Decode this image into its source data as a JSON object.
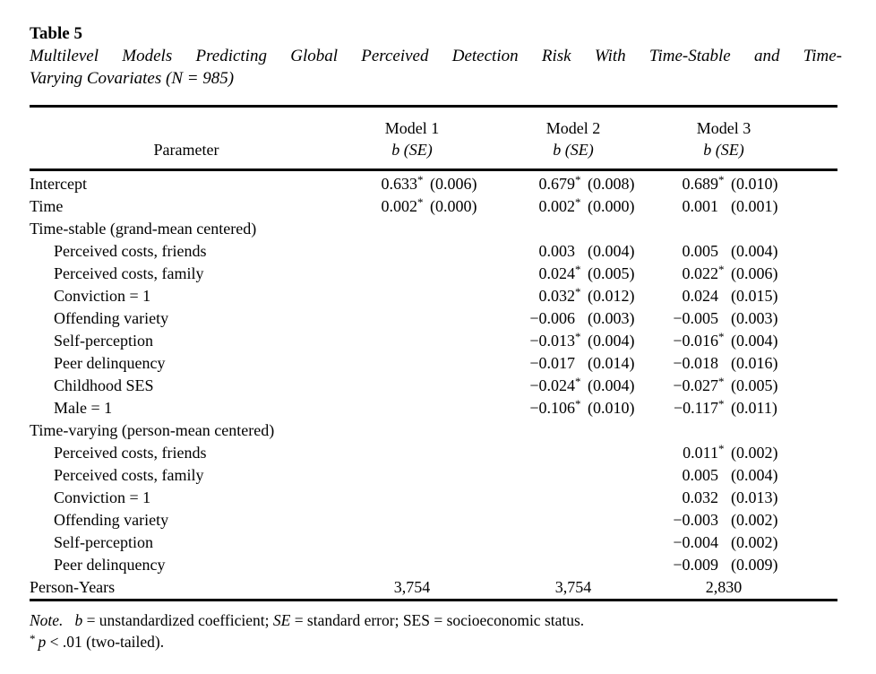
{
  "colors": {
    "text": "#000000",
    "background": "#ffffff"
  },
  "title": "Table 5",
  "subtitle_line1": "Multilevel Models Predicting Global Perceived Detection Risk With Time-Stable and Time-",
  "subtitle_line2": "Varying Covariates (N = 985)",
  "header": {
    "param": "Parameter",
    "models": [
      {
        "name": "Model 1",
        "stat": "b (SE)"
      },
      {
        "name": "Model 2",
        "stat": "b (SE)"
      },
      {
        "name": "Model 3",
        "stat": "b (SE)"
      }
    ]
  },
  "rows": [
    {
      "label": "Intercept",
      "indent": false,
      "m1": {
        "b": "0.633",
        "star": "*",
        "se": "(0.006)"
      },
      "m2": {
        "b": "0.679",
        "star": "*",
        "se": "(0.008)"
      },
      "m3": {
        "b": "0.689",
        "star": "*",
        "se": "(0.010)"
      }
    },
    {
      "label": "Time",
      "indent": false,
      "m1": {
        "b": "0.002",
        "star": "*",
        "se": "(0.000)"
      },
      "m2": {
        "b": "0.002",
        "star": "*",
        "se": "(0.000)"
      },
      "m3": {
        "b": "0.001",
        "star": "",
        "se": "(0.001)"
      }
    },
    {
      "label": "Time-stable (grand-mean centered)",
      "indent": false,
      "section": true
    },
    {
      "label": "Perceived costs, friends",
      "indent": true,
      "m2": {
        "b": "0.003",
        "star": "",
        "se": "(0.004)"
      },
      "m3": {
        "b": "0.005",
        "star": "",
        "se": "(0.004)"
      }
    },
    {
      "label": "Perceived costs, family",
      "indent": true,
      "m2": {
        "b": "0.024",
        "star": "*",
        "se": "(0.005)"
      },
      "m3": {
        "b": "0.022",
        "star": "*",
        "se": "(0.006)"
      }
    },
    {
      "label": "Conviction = 1",
      "indent": true,
      "m2": {
        "b": "0.032",
        "star": "*",
        "se": "(0.012)"
      },
      "m3": {
        "b": "0.024",
        "star": "",
        "se": "(0.015)"
      }
    },
    {
      "label": "Offending variety",
      "indent": true,
      "m2": {
        "b": "−0.006",
        "star": "",
        "se": "(0.003)"
      },
      "m3": {
        "b": "−0.005",
        "star": "",
        "se": "(0.003)"
      }
    },
    {
      "label": "Self-perception",
      "indent": true,
      "m2": {
        "b": "−0.013",
        "star": "*",
        "se": "(0.004)"
      },
      "m3": {
        "b": "−0.016",
        "star": "*",
        "se": "(0.004)"
      }
    },
    {
      "label": "Peer delinquency",
      "indent": true,
      "m2": {
        "b": "−0.017",
        "star": "",
        "se": "(0.014)"
      },
      "m3": {
        "b": "−0.018",
        "star": "",
        "se": "(0.016)"
      }
    },
    {
      "label": "Childhood SES",
      "indent": true,
      "m2": {
        "b": "−0.024",
        "star": "*",
        "se": "(0.004)"
      },
      "m3": {
        "b": "−0.027",
        "star": "*",
        "se": "(0.005)"
      }
    },
    {
      "label": "Male = 1",
      "indent": true,
      "m2": {
        "b": "−0.106",
        "star": "*",
        "se": "(0.010)"
      },
      "m3": {
        "b": "−0.117",
        "star": "*",
        "se": "(0.011)"
      }
    },
    {
      "label": "Time-varying (person-mean centered)",
      "indent": false,
      "section": true
    },
    {
      "label": "Perceived costs, friends",
      "indent": true,
      "m3": {
        "b": "0.011",
        "star": "*",
        "se": "(0.002)"
      }
    },
    {
      "label": "Perceived costs, family",
      "indent": true,
      "m3": {
        "b": "0.005",
        "star": "",
        "se": "(0.004)"
      }
    },
    {
      "label": "Conviction = 1",
      "indent": true,
      "m3": {
        "b": "0.032",
        "star": "",
        "se": "(0.013)"
      }
    },
    {
      "label": "Offending variety",
      "indent": true,
      "m3": {
        "b": "−0.003",
        "star": "",
        "se": "(0.002)"
      }
    },
    {
      "label": "Self-perception",
      "indent": true,
      "m3": {
        "b": "−0.004",
        "star": "",
        "se": "(0.002)"
      }
    },
    {
      "label": "Peer delinquency",
      "indent": true,
      "m3": {
        "b": "−0.009",
        "star": "",
        "se": "(0.009)"
      }
    },
    {
      "label": "Person-Years",
      "indent": false,
      "center": true,
      "m1": {
        "b": "3,754",
        "star": "",
        "se": ""
      },
      "m2": {
        "b": "3,754",
        "star": "",
        "se": ""
      },
      "m3": {
        "b": "2,830",
        "star": "",
        "se": ""
      }
    }
  ],
  "note": {
    "label": "Note.",
    "seg_b": "b",
    "seg_b_text": " = unstandardized coefficient; ",
    "seg_se": "SE",
    "seg_se_text": " = standard error; SES = socioeconomic status.",
    "sig_star": "*",
    "sig_p": "p",
    "sig_text": " < .01 (two-tailed)."
  }
}
